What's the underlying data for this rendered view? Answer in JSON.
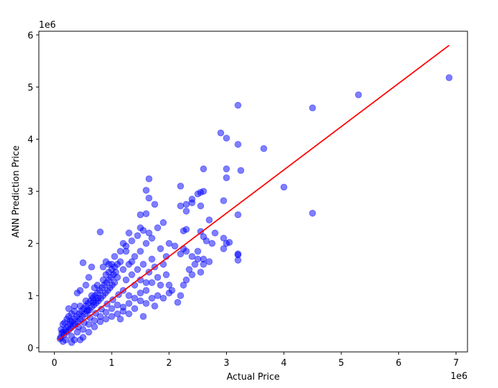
{
  "chart_data": {
    "type": "scatter",
    "title": "",
    "xlabel": "Actual Price",
    "ylabel": "ANN Prediction Price",
    "x_offset_label": "1e6",
    "y_offset_label": "1e6",
    "xlim": [
      -0.27,
      7.2
    ],
    "ylim": [
      -0.08,
      6.07
    ],
    "x_ticks": [
      0,
      1,
      2,
      3,
      4,
      5,
      6,
      7
    ],
    "y_ticks": [
      0,
      1,
      2,
      3,
      4,
      5,
      6
    ],
    "x_tick_labels": [
      "0",
      "1",
      "2",
      "3",
      "4",
      "5",
      "6",
      "7"
    ],
    "y_tick_labels": [
      "0",
      "1",
      "2",
      "3",
      "4",
      "5",
      "6"
    ],
    "grid": false,
    "legend": "none",
    "colors": {
      "points": "#0000ff",
      "fit_line": "#ff0000"
    },
    "point_opacity": 0.5,
    "fit_line": {
      "x": [
        0.07,
        6.88
      ],
      "y": [
        0.15,
        5.8
      ]
    },
    "points": [
      [
        0.1,
        0.17
      ],
      [
        0.11,
        0.2
      ],
      [
        0.13,
        0.28
      ],
      [
        0.15,
        0.3
      ],
      [
        0.17,
        0.25
      ],
      [
        0.19,
        0.35
      ],
      [
        0.21,
        0.3
      ],
      [
        0.23,
        0.4
      ],
      [
        0.25,
        0.33
      ],
      [
        0.27,
        0.45
      ],
      [
        0.29,
        0.38
      ],
      [
        0.31,
        0.5
      ],
      [
        0.33,
        0.42
      ],
      [
        0.35,
        0.55
      ],
      [
        0.37,
        0.45
      ],
      [
        0.39,
        0.6
      ],
      [
        0.41,
        0.5
      ],
      [
        0.43,
        0.65
      ],
      [
        0.45,
        0.55
      ],
      [
        0.47,
        0.7
      ],
      [
        0.49,
        0.6
      ],
      [
        0.51,
        0.75
      ],
      [
        0.53,
        0.65
      ],
      [
        0.55,
        0.8
      ],
      [
        0.57,
        0.7
      ],
      [
        0.59,
        0.85
      ],
      [
        0.61,
        0.72
      ],
      [
        0.63,
        0.9
      ],
      [
        0.65,
        0.78
      ],
      [
        0.67,
        0.95
      ],
      [
        0.69,
        0.82
      ],
      [
        0.71,
        1.0
      ],
      [
        0.73,
        0.86
      ],
      [
        0.75,
        1.05
      ],
      [
        0.77,
        0.9
      ],
      [
        0.79,
        1.1
      ],
      [
        0.81,
        0.95
      ],
      [
        0.83,
        1.15
      ],
      [
        0.85,
        1.0
      ],
      [
        0.87,
        1.2
      ],
      [
        0.89,
        1.05
      ],
      [
        0.91,
        1.25
      ],
      [
        0.93,
        1.1
      ],
      [
        0.95,
        1.3
      ],
      [
        0.97,
        1.15
      ],
      [
        0.99,
        1.35
      ],
      [
        1.01,
        1.2
      ],
      [
        1.03,
        1.4
      ],
      [
        1.05,
        1.25
      ],
      [
        1.07,
        1.45
      ],
      [
        0.2,
        0.15
      ],
      [
        0.3,
        0.22
      ],
      [
        0.4,
        0.3
      ],
      [
        0.5,
        0.35
      ],
      [
        0.6,
        0.45
      ],
      [
        0.7,
        0.52
      ],
      [
        0.8,
        0.6
      ],
      [
        0.9,
        0.68
      ],
      [
        1.0,
        0.75
      ],
      [
        1.1,
        0.82
      ],
      [
        0.25,
        0.6
      ],
      [
        0.35,
        0.7
      ],
      [
        0.45,
        0.8
      ],
      [
        0.55,
        0.9
      ],
      [
        0.65,
        1.0
      ],
      [
        0.75,
        1.2
      ],
      [
        0.85,
        1.3
      ],
      [
        0.95,
        1.45
      ],
      [
        1.05,
        1.55
      ],
      [
        1.15,
        1.65
      ],
      [
        0.15,
        0.45
      ],
      [
        0.28,
        0.52
      ],
      [
        0.42,
        0.4
      ],
      [
        0.52,
        0.48
      ],
      [
        0.62,
        0.58
      ],
      [
        0.72,
        0.66
      ],
      [
        0.82,
        0.74
      ],
      [
        0.92,
        0.84
      ],
      [
        1.02,
        0.92
      ],
      [
        1.12,
        1.02
      ],
      [
        1.2,
        1.1
      ],
      [
        1.25,
        1.3
      ],
      [
        1.3,
        1.0
      ],
      [
        1.35,
        1.4
      ],
      [
        1.4,
        1.2
      ],
      [
        1.45,
        1.5
      ],
      [
        1.5,
        1.3
      ],
      [
        1.55,
        1.6
      ],
      [
        1.6,
        1.1
      ],
      [
        1.65,
        1.45
      ],
      [
        1.7,
        1.25
      ],
      [
        1.75,
        1.55
      ],
      [
        1.8,
        1.35
      ],
      [
        1.85,
        1.2
      ],
      [
        1.9,
        1.6
      ],
      [
        1.95,
        1.4
      ],
      [
        2.0,
        1.2
      ],
      [
        2.05,
        1.1
      ],
      [
        1.6,
        0.85
      ],
      [
        1.4,
        0.75
      ],
      [
        1.5,
        0.9
      ],
      [
        1.7,
        0.95
      ],
      [
        1.3,
        0.65
      ],
      [
        1.55,
        0.6
      ],
      [
        1.2,
        0.7
      ],
      [
        1.15,
        0.55
      ],
      [
        1.9,
        0.95
      ],
      [
        2.0,
        1.05
      ],
      [
        1.8,
        1.0
      ],
      [
        1.75,
        0.8
      ],
      [
        1.3,
        1.6
      ],
      [
        1.4,
        1.75
      ],
      [
        1.5,
        1.85
      ],
      [
        1.6,
        2.0
      ],
      [
        1.7,
        2.1
      ],
      [
        1.45,
        2.15
      ],
      [
        1.55,
        2.25
      ],
      [
        1.35,
        2.05
      ],
      [
        1.25,
        1.85
      ],
      [
        1.2,
        2.0
      ],
      [
        1.7,
        1.7
      ],
      [
        1.85,
        1.9
      ],
      [
        1.95,
        1.75
      ],
      [
        2.1,
        1.95
      ],
      [
        2.0,
        2.0
      ],
      [
        1.8,
        2.3
      ],
      [
        1.9,
        2.4
      ],
      [
        1.65,
        2.2
      ],
      [
        1.3,
        2.2
      ],
      [
        1.5,
        2.3
      ],
      [
        0.8,
        2.22
      ],
      [
        0.95,
        1.6
      ],
      [
        0.85,
        1.55
      ],
      [
        0.9,
        1.65
      ],
      [
        0.5,
        1.63
      ],
      [
        0.65,
        1.55
      ],
      [
        0.55,
        1.2
      ],
      [
        0.6,
        1.35
      ],
      [
        0.45,
        1.1
      ],
      [
        0.4,
        1.05
      ],
      [
        2.25,
        1.2
      ],
      [
        2.2,
        1.0
      ],
      [
        2.15,
        0.87
      ],
      [
        2.3,
        1.3
      ],
      [
        2.4,
        1.4
      ],
      [
        2.35,
        1.5
      ],
      [
        2.45,
        1.6
      ],
      [
        2.5,
        1.7
      ],
      [
        2.6,
        1.6
      ],
      [
        2.55,
        1.45
      ],
      [
        2.2,
        1.8
      ],
      [
        2.25,
        1.9
      ],
      [
        2.3,
        1.85
      ],
      [
        2.4,
        1.75
      ],
      [
        2.5,
        1.85
      ],
      [
        2.6,
        1.7
      ],
      [
        2.7,
        1.65
      ],
      [
        2.75,
        2.0
      ],
      [
        2.8,
        2.2
      ],
      [
        2.65,
        2.05
      ],
      [
        2.3,
        2.27
      ],
      [
        2.25,
        2.24
      ],
      [
        2.55,
        2.23
      ],
      [
        2.6,
        2.13
      ],
      [
        2.7,
        2.45
      ],
      [
        2.95,
        2.1
      ],
      [
        2.95,
        1.9
      ],
      [
        3.0,
        2.0
      ],
      [
        3.05,
        2.02
      ],
      [
        3.2,
        1.8
      ],
      [
        3.2,
        1.68
      ],
      [
        3.2,
        1.78
      ],
      [
        3.2,
        2.55
      ],
      [
        2.95,
        2.82
      ],
      [
        2.5,
        2.95
      ],
      [
        2.55,
        2.98
      ],
      [
        2.6,
        3.0
      ],
      [
        2.4,
        2.85
      ],
      [
        2.4,
        2.78
      ],
      [
        2.55,
        2.72
      ],
      [
        2.3,
        2.62
      ],
      [
        2.3,
        2.75
      ],
      [
        2.2,
        2.72
      ],
      [
        2.2,
        3.1
      ],
      [
        1.6,
        3.02
      ],
      [
        1.65,
        2.87
      ],
      [
        1.65,
        3.24
      ],
      [
        1.75,
        2.75
      ],
      [
        1.6,
        2.57
      ],
      [
        1.5,
        2.55
      ],
      [
        2.6,
        3.43
      ],
      [
        3.0,
        3.43
      ],
      [
        3.25,
        3.4
      ],
      [
        3.0,
        3.26
      ],
      [
        2.9,
        4.12
      ],
      [
        3.0,
        4.02
      ],
      [
        3.2,
        3.9
      ],
      [
        3.2,
        4.65
      ],
      [
        3.65,
        3.82
      ],
      [
        4.0,
        3.08
      ],
      [
        4.5,
        4.6
      ],
      [
        4.5,
        2.58
      ],
      [
        5.3,
        4.85
      ],
      [
        6.88,
        5.18
      ],
      [
        1.1,
        1.6
      ],
      [
        1.0,
        1.6
      ],
      [
        1.2,
        1.5
      ],
      [
        0.7,
        1.15
      ],
      [
        0.6,
        0.3
      ],
      [
        0.5,
        0.2
      ],
      [
        0.3,
        0.1
      ],
      [
        0.35,
        0.15
      ],
      [
        0.45,
        0.15
      ],
      [
        0.15,
        0.12
      ],
      [
        0.12,
        0.35
      ],
      [
        0.18,
        0.48
      ],
      [
        0.22,
        0.55
      ],
      [
        0.3,
        0.65
      ],
      [
        0.25,
        0.75
      ],
      [
        0.35,
        0.8
      ],
      [
        0.7,
        0.4
      ],
      [
        0.8,
        0.5
      ],
      [
        0.9,
        0.55
      ],
      [
        1.0,
        0.6
      ],
      [
        1.1,
        0.65
      ],
      [
        1.2,
        0.78
      ],
      [
        1.3,
        0.85
      ],
      [
        1.4,
        0.95
      ],
      [
        1.5,
        1.05
      ],
      [
        1.6,
        1.25
      ],
      [
        1.05,
        1.75
      ],
      [
        1.15,
        1.85
      ],
      [
        1.25,
        1.95
      ],
      [
        1.35,
        1.65
      ],
      [
        0.9,
        1.4
      ],
      [
        1.0,
        1.5
      ],
      [
        1.1,
        1.35
      ],
      [
        0.75,
        0.95
      ],
      [
        0.68,
        0.88
      ],
      [
        0.58,
        0.72
      ]
    ]
  }
}
